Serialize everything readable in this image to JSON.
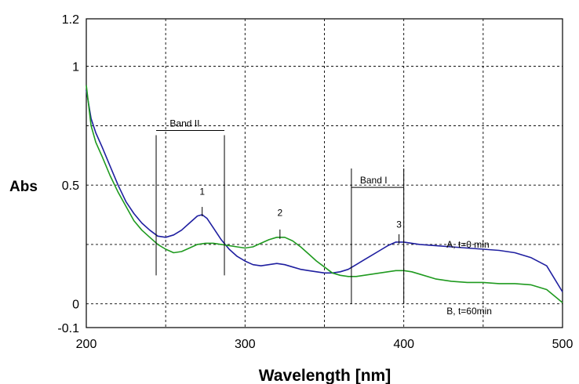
{
  "chart_data": {
    "type": "line",
    "xlabel": "Wavelength [nm]",
    "ylabel": "Abs",
    "xlim": [
      200,
      500
    ],
    "ylim": [
      -0.1,
      1.2
    ],
    "x_ticks": [
      200,
      300,
      400,
      500
    ],
    "y_ticks": [
      {
        "value": -0.1,
        "label": "-0.1"
      },
      {
        "value": 0,
        "label": "0"
      },
      {
        "value": 0.5,
        "label": "0.5"
      },
      {
        "value": 1,
        "label": "1"
      },
      {
        "value": 1.2,
        "label": "1.2"
      }
    ],
    "grid": true,
    "grid_x": [
      250,
      300,
      350,
      400,
      450
    ],
    "grid_y": [
      0,
      0.25,
      0.5,
      0.75,
      1
    ],
    "series": [
      {
        "name": "A, t=0 min",
        "color": "#1f1fa0",
        "x": [
          200,
          203,
          206,
          210,
          215,
          220,
          225,
          230,
          235,
          240,
          245,
          250,
          255,
          260,
          265,
          270,
          273,
          276,
          280,
          285,
          290,
          295,
          300,
          305,
          310,
          315,
          320,
          325,
          330,
          335,
          340,
          345,
          350,
          355,
          360,
          365,
          370,
          375,
          380,
          385,
          390,
          395,
          400,
          405,
          410,
          420,
          430,
          440,
          450,
          460,
          470,
          480,
          490,
          500
        ],
        "y": [
          0.9,
          0.78,
          0.72,
          0.66,
          0.58,
          0.5,
          0.43,
          0.38,
          0.34,
          0.31,
          0.285,
          0.28,
          0.29,
          0.31,
          0.34,
          0.37,
          0.375,
          0.36,
          0.32,
          0.27,
          0.23,
          0.2,
          0.18,
          0.165,
          0.16,
          0.165,
          0.17,
          0.165,
          0.155,
          0.145,
          0.14,
          0.135,
          0.13,
          0.13,
          0.135,
          0.145,
          0.165,
          0.185,
          0.205,
          0.225,
          0.245,
          0.26,
          0.26,
          0.255,
          0.25,
          0.245,
          0.24,
          0.235,
          0.23,
          0.225,
          0.215,
          0.195,
          0.16,
          0.05
        ]
      },
      {
        "name": "B, t=60min",
        "color": "#1f9a1f",
        "x": [
          200,
          203,
          206,
          210,
          215,
          220,
          225,
          230,
          235,
          240,
          245,
          250,
          255,
          260,
          265,
          270,
          275,
          280,
          285,
          290,
          295,
          300,
          305,
          310,
          315,
          320,
          325,
          330,
          335,
          340,
          345,
          350,
          355,
          360,
          365,
          370,
          375,
          380,
          385,
          390,
          395,
          400,
          405,
          410,
          420,
          430,
          440,
          450,
          460,
          470,
          480,
          490,
          500
        ],
        "y": [
          0.92,
          0.75,
          0.68,
          0.62,
          0.54,
          0.47,
          0.41,
          0.35,
          0.31,
          0.28,
          0.25,
          0.23,
          0.215,
          0.22,
          0.235,
          0.25,
          0.255,
          0.255,
          0.25,
          0.245,
          0.24,
          0.235,
          0.24,
          0.255,
          0.27,
          0.28,
          0.28,
          0.265,
          0.24,
          0.21,
          0.18,
          0.155,
          0.13,
          0.12,
          0.115,
          0.115,
          0.12,
          0.125,
          0.13,
          0.135,
          0.14,
          0.14,
          0.135,
          0.125,
          0.105,
          0.095,
          0.09,
          0.09,
          0.085,
          0.085,
          0.08,
          0.06,
          0.005
        ]
      }
    ],
    "series_labels": [
      {
        "text": "A, t=0 min",
        "x": 427,
        "y": 0.25
      },
      {
        "text": "B, t=60min",
        "x": 427,
        "y": -0.03
      }
    ],
    "bands": [
      {
        "label": "Band II",
        "x_start": 244,
        "x_end": 287,
        "y_bracket": 0.73,
        "y_top": 0.71,
        "y_bottom": 0.12,
        "label_x": 262
      },
      {
        "label": "Band I",
        "x_start": 367,
        "x_end": 400,
        "y_bracket": 0.49,
        "y_top": 0.57,
        "y_bottom": 0.0,
        "label_x": 381
      }
    ],
    "peaks": [
      {
        "label": "1",
        "x": 273,
        "y": 0.375,
        "label_y": 0.46
      },
      {
        "label": "2",
        "x": 322,
        "y": 0.28,
        "label_y": 0.37
      },
      {
        "label": "3",
        "x": 397,
        "y": 0.26,
        "label_y": 0.32
      }
    ]
  }
}
